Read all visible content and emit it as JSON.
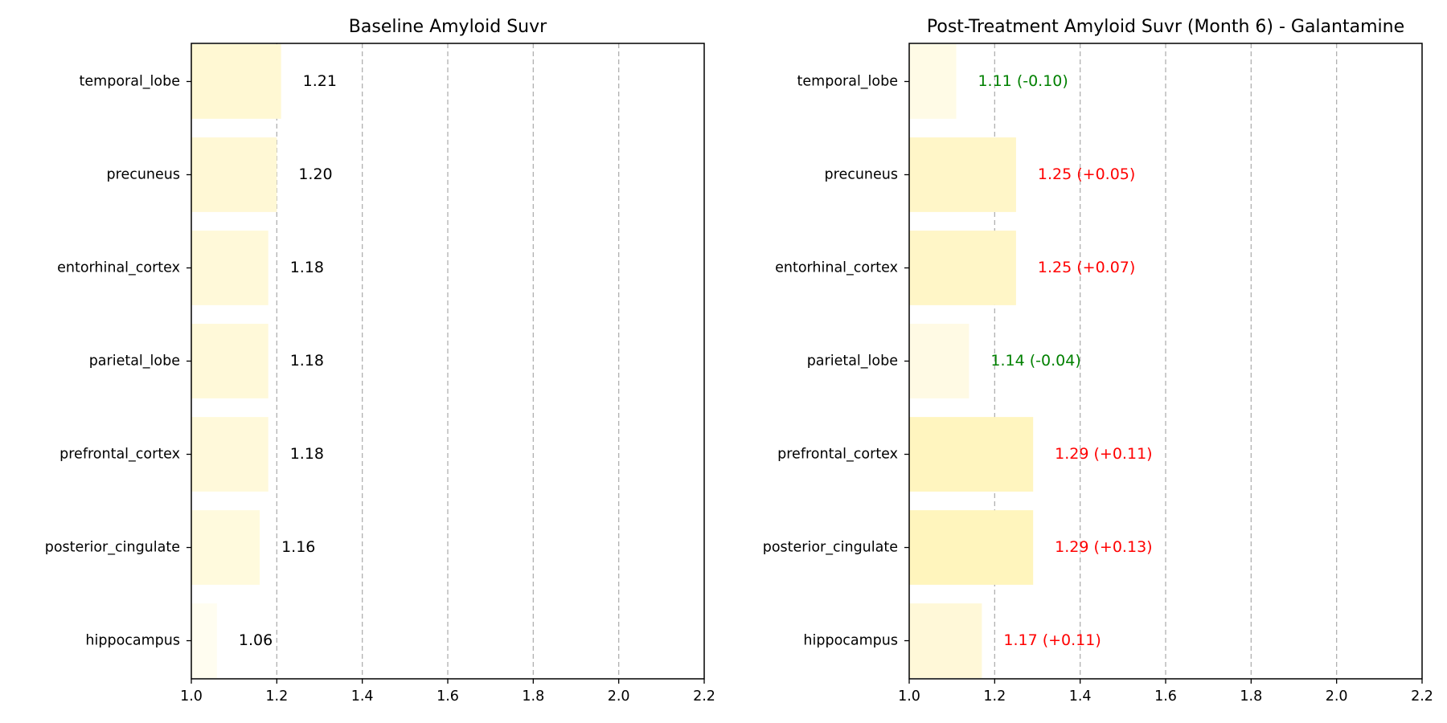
{
  "chart_data": [
    {
      "type": "bar",
      "orientation": "horizontal",
      "title": "Baseline Amyloid Suvr",
      "xlabel": "",
      "ylabel": "",
      "xlim": [
        1.0,
        2.2
      ],
      "xticks": [
        1.0,
        1.2,
        1.4,
        1.6,
        1.8,
        2.0,
        2.2
      ],
      "xtick_labels": [
        "1.0",
        "1.2",
        "1.4",
        "1.6",
        "1.8",
        "2.0",
        "2.2"
      ],
      "grid": "x-dashed",
      "categories": [
        "temporal_lobe",
        "precuneus",
        "entorhinal_cortex",
        "parietal_lobe",
        "prefrontal_cortex",
        "posterior_cingulate",
        "hippocampus"
      ],
      "values": [
        1.21,
        1.2,
        1.18,
        1.18,
        1.18,
        1.16,
        1.06
      ],
      "bar_labels": [
        "1.21",
        "1.20",
        "1.18",
        "1.18",
        "1.18",
        "1.16",
        "1.06"
      ],
      "bar_colors": [
        "#fff8d3",
        "#fff8d5",
        "#fff9d9",
        "#fff9d9",
        "#fff9da",
        "#fffadd",
        "#fffdf0"
      ],
      "label_colors": [
        "#000000",
        "#000000",
        "#000000",
        "#000000",
        "#000000",
        "#000000",
        "#000000"
      ]
    },
    {
      "type": "bar",
      "orientation": "horizontal",
      "title": "Post-Treatment Amyloid Suvr (Month 6) - Galantamine",
      "xlabel": "",
      "ylabel": "",
      "xlim": [
        1.0,
        2.2
      ],
      "xticks": [
        1.0,
        1.2,
        1.4,
        1.6,
        1.8,
        2.0,
        2.2
      ],
      "xtick_labels": [
        "1.0",
        "1.2",
        "1.4",
        "1.6",
        "1.8",
        "2.0",
        "2.2"
      ],
      "grid": "x-dashed",
      "categories": [
        "temporal_lobe",
        "precuneus",
        "entorhinal_cortex",
        "parietal_lobe",
        "prefrontal_cortex",
        "posterior_cingulate",
        "hippocampus"
      ],
      "values": [
        1.11,
        1.25,
        1.25,
        1.14,
        1.29,
        1.29,
        1.17
      ],
      "bar_labels": [
        "1.11 (-0.10)",
        "1.25 (+0.05)",
        "1.25 (+0.07)",
        "1.14 (-0.04)",
        "1.29 (+0.11)",
        "1.29 (+0.13)",
        "1.17 (+0.11)"
      ],
      "bar_colors": [
        "#fffbe6",
        "#fff6c8",
        "#fff6c7",
        "#fffae4",
        "#fff5bf",
        "#fff5bd",
        "#fff8d8"
      ],
      "label_colors": [
        "#008000",
        "#ff0000",
        "#ff0000",
        "#008000",
        "#ff0000",
        "#ff0000",
        "#ff0000"
      ]
    }
  ]
}
